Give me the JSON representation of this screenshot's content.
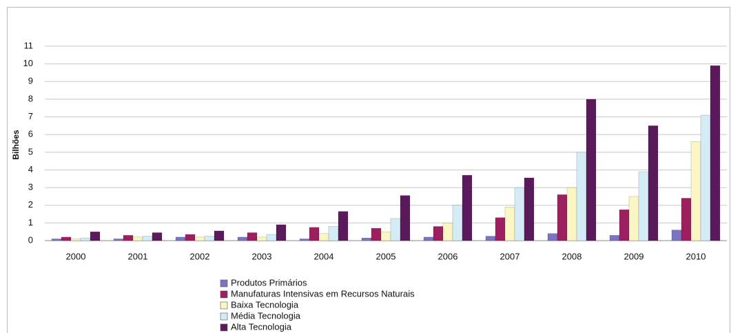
{
  "chart_data": {
    "type": "bar",
    "y_label": "Bilhões",
    "categories": [
      "2000",
      "2001",
      "2002",
      "2003",
      "2004",
      "2005",
      "2006",
      "2007",
      "2008",
      "2009",
      "2010"
    ],
    "series": [
      {
        "name": "Produtos Primários",
        "color": "#7b74c0",
        "values": [
          0.1,
          0.1,
          0.2,
          0.2,
          0.1,
          0.15,
          0.2,
          0.25,
          0.4,
          0.3,
          0.6
        ]
      },
      {
        "name": "Manufaturas Intensivas em Recursos Naturais",
        "color": "#9e1f5f",
        "values": [
          0.2,
          0.3,
          0.35,
          0.45,
          0.75,
          0.7,
          0.8,
          1.3,
          2.6,
          1.75,
          2.4
        ]
      },
      {
        "name": "Baixa Tecnologia",
        "color": "#fbf6c4",
        "values": [
          0.1,
          0.2,
          0.2,
          0.2,
          0.4,
          0.5,
          1.0,
          1.9,
          3.0,
          2.5,
          5.6
        ]
      },
      {
        "name": "Média Tecnologia",
        "color": "#d3ecf5",
        "values": [
          0.15,
          0.25,
          0.25,
          0.35,
          0.8,
          1.25,
          2.0,
          3.0,
          5.0,
          3.9,
          7.1
        ]
      },
      {
        "name": "Alta Tecnologia",
        "color": "#5b1a5c",
        "values": [
          0.5,
          0.45,
          0.55,
          0.9,
          1.65,
          2.55,
          3.7,
          3.55,
          8.0,
          6.5,
          9.9
        ]
      }
    ],
    "ylim": [
      0,
      11
    ],
    "yticks": [
      0,
      1,
      2,
      3,
      4,
      5,
      6,
      7,
      8,
      9,
      10,
      11
    ],
    "grid": true,
    "legend": "bottom"
  }
}
